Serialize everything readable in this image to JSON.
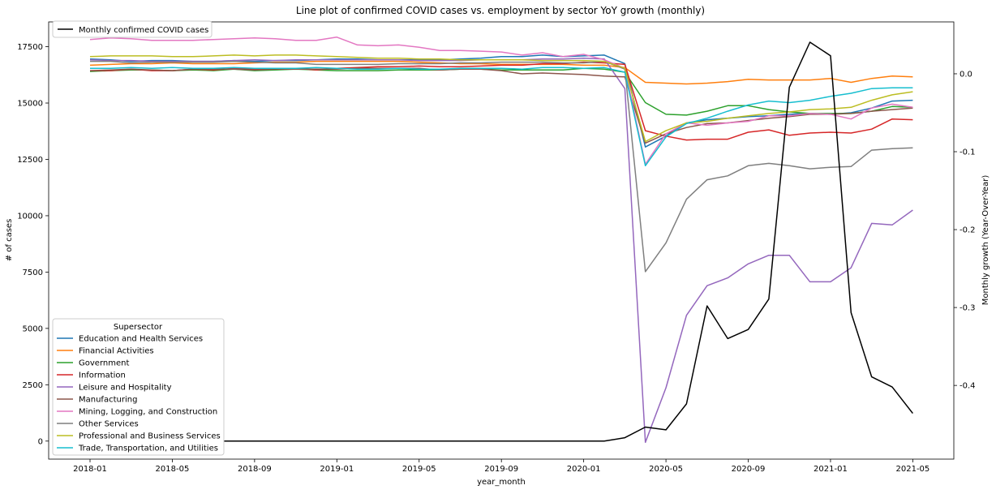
{
  "chart_data": {
    "type": "line",
    "title": "Line plot of confirmed COVID cases vs. employment by sector YoY growth (monthly)",
    "xlabel": "year_month",
    "ylabel_left": "# of cases",
    "ylabel_right": "Monthly growth (Year-Over-Year)",
    "x": [
      "2018-01",
      "2018-02",
      "2018-03",
      "2018-04",
      "2018-05",
      "2018-06",
      "2018-07",
      "2018-08",
      "2018-09",
      "2018-10",
      "2018-11",
      "2018-12",
      "2019-01",
      "2019-02",
      "2019-03",
      "2019-04",
      "2019-05",
      "2019-06",
      "2019-07",
      "2019-08",
      "2019-09",
      "2019-10",
      "2019-11",
      "2019-12",
      "2020-01",
      "2020-02",
      "2020-03",
      "2020-04",
      "2020-05",
      "2020-06",
      "2020-07",
      "2020-08",
      "2020-09",
      "2020-10",
      "2020-11",
      "2020-12",
      "2021-01",
      "2021-02",
      "2021-03",
      "2021-04",
      "2021-05"
    ],
    "x_ticks": [
      "2018-01",
      "2018-05",
      "2018-09",
      "2019-01",
      "2019-05",
      "2019-09",
      "2020-01",
      "2020-05",
      "2020-09",
      "2021-01",
      "2021-05"
    ],
    "ylim_left": [
      -800,
      18600
    ],
    "y_ticks_left": [
      0,
      2500,
      5000,
      7500,
      10000,
      12500,
      15000,
      17500
    ],
    "ylim_right": [
      -0.4946,
      0.0666
    ],
    "y_ticks_right": [
      0.0,
      -0.1,
      -0.2,
      -0.3,
      -0.4
    ],
    "grid": false,
    "covid_series": {
      "name": "Monthly confirmed COVID cases",
      "color": "#000000",
      "values": [
        0,
        0,
        0,
        0,
        0,
        0,
        0,
        0,
        0,
        0,
        0,
        0,
        0,
        0,
        0,
        0,
        0,
        0,
        0,
        0,
        0,
        0,
        0,
        0,
        0,
        0,
        150,
        620,
        500,
        1650,
        6000,
        4550,
        4950,
        6300,
        15700,
        17700,
        17100,
        5700,
        2850,
        2400,
        1230
      ]
    },
    "legend_top_placement": "top-left",
    "legend_bottom_placement": "lower-left",
    "legend_title": "Supersector",
    "series": [
      {
        "name": "Education and Health Services",
        "color": "#1f77b4",
        "values": [
          0.019,
          0.018,
          0.016,
          0.017,
          0.017,
          0.016,
          0.016,
          0.017,
          0.016,
          0.017,
          0.017,
          0.018,
          0.019,
          0.019,
          0.018,
          0.018,
          0.018,
          0.018,
          0.019,
          0.02,
          0.022,
          0.022,
          0.024,
          0.022,
          0.023,
          0.024,
          0.013,
          -0.094,
          -0.08,
          -0.063,
          -0.059,
          -0.057,
          -0.055,
          -0.054,
          -0.052,
          -0.051,
          -0.052,
          -0.05,
          -0.044,
          -0.035,
          -0.034
        ]
      },
      {
        "name": "Financial Activities",
        "color": "#ff7f0e",
        "values": [
          0.011,
          0.012,
          0.013,
          0.013,
          0.014,
          0.013,
          0.013,
          0.013,
          0.014,
          0.015,
          0.015,
          0.016,
          0.016,
          0.016,
          0.016,
          0.016,
          0.015,
          0.014,
          0.013,
          0.013,
          0.012,
          0.012,
          0.012,
          0.012,
          0.011,
          0.011,
          0.008,
          -0.011,
          -0.012,
          -0.013,
          -0.012,
          -0.01,
          -0.007,
          -0.008,
          -0.008,
          -0.008,
          -0.006,
          -0.011,
          -0.006,
          -0.003,
          -0.004
        ]
      },
      {
        "name": "Government",
        "color": "#2ca02c",
        "values": [
          0.003,
          0.004,
          0.005,
          0.005,
          0.004,
          0.005,
          0.004,
          0.006,
          0.004,
          0.005,
          0.006,
          0.005,
          0.004,
          0.004,
          0.004,
          0.005,
          0.005,
          0.005,
          0.006,
          0.006,
          0.005,
          0.005,
          0.005,
          0.005,
          0.007,
          0.006,
          0.002,
          -0.037,
          -0.052,
          -0.053,
          -0.048,
          -0.041,
          -0.041,
          -0.046,
          -0.049,
          -0.051,
          -0.051,
          -0.051,
          -0.048,
          -0.042,
          -0.043
        ]
      },
      {
        "name": "Information",
        "color": "#d62728",
        "values": [
          0.004,
          0.004,
          0.006,
          0.004,
          0.004,
          0.006,
          0.005,
          0.007,
          0.006,
          0.007,
          0.007,
          0.005,
          0.007,
          0.008,
          0.009,
          0.009,
          0.01,
          0.009,
          0.009,
          0.01,
          0.011,
          0.011,
          0.013,
          0.013,
          0.015,
          0.014,
          0.012,
          -0.073,
          -0.08,
          -0.085,
          -0.084,
          -0.084,
          -0.075,
          -0.072,
          -0.079,
          -0.076,
          -0.075,
          -0.076,
          -0.071,
          -0.058,
          -0.059
        ]
      },
      {
        "name": "Leisure and Hospitality",
        "color": "#9467bd",
        "values": [
          0.018,
          0.017,
          0.017,
          0.016,
          0.016,
          0.016,
          0.016,
          0.017,
          0.018,
          0.017,
          0.018,
          0.018,
          0.018,
          0.018,
          0.018,
          0.018,
          0.017,
          0.017,
          0.017,
          0.018,
          0.018,
          0.018,
          0.019,
          0.019,
          0.02,
          0.019,
          -0.019,
          -0.473,
          -0.403,
          -0.31,
          -0.272,
          -0.262,
          -0.244,
          -0.233,
          -0.233,
          -0.267,
          -0.267,
          -0.249,
          -0.192,
          -0.194,
          -0.175
        ]
      },
      {
        "name": "Manufacturing",
        "color": "#8c564b",
        "values": [
          0.004,
          0.005,
          0.006,
          0.005,
          0.004,
          0.006,
          0.006,
          0.006,
          0.005,
          0.006,
          0.006,
          0.006,
          0.006,
          0.007,
          0.007,
          0.007,
          0.007,
          0.005,
          0.006,
          0.006,
          0.004,
          0.0,
          0.001,
          0.0,
          -0.001,
          -0.003,
          -0.004,
          -0.089,
          -0.077,
          -0.069,
          -0.064,
          -0.063,
          -0.06,
          -0.057,
          -0.055,
          -0.052,
          -0.052,
          -0.051,
          -0.048,
          -0.046,
          -0.044
        ]
      },
      {
        "name": "Mining, Logging, and Construction",
        "color": "#e377c2",
        "values": [
          0.044,
          0.046,
          0.045,
          0.043,
          0.043,
          0.043,
          0.044,
          0.045,
          0.046,
          0.045,
          0.043,
          0.043,
          0.047,
          0.037,
          0.036,
          0.037,
          0.034,
          0.03,
          0.03,
          0.029,
          0.028,
          0.024,
          0.027,
          0.022,
          0.025,
          0.018,
          0.007,
          -0.116,
          -0.077,
          -0.063,
          -0.066,
          -0.063,
          -0.061,
          -0.054,
          -0.054,
          -0.051,
          -0.052,
          -0.058,
          -0.044,
          -0.039,
          -0.043
        ]
      },
      {
        "name": "Other Services",
        "color": "#7f7f7f",
        "values": [
          0.016,
          0.016,
          0.014,
          0.015,
          0.015,
          0.015,
          0.015,
          0.016,
          0.015,
          0.014,
          0.014,
          0.012,
          0.012,
          0.012,
          0.012,
          0.013,
          0.013,
          0.013,
          0.014,
          0.014,
          0.015,
          0.015,
          0.015,
          0.014,
          0.014,
          0.016,
          0.006,
          -0.254,
          -0.217,
          -0.161,
          -0.136,
          -0.131,
          -0.118,
          -0.115,
          -0.118,
          -0.122,
          -0.12,
          -0.119,
          -0.098,
          -0.096,
          -0.095
        ]
      },
      {
        "name": "Professional and Business Services",
        "color": "#bcbd22",
        "values": [
          0.022,
          0.023,
          0.023,
          0.023,
          0.022,
          0.022,
          0.023,
          0.024,
          0.023,
          0.024,
          0.024,
          0.023,
          0.022,
          0.021,
          0.02,
          0.02,
          0.019,
          0.019,
          0.018,
          0.018,
          0.018,
          0.018,
          0.017,
          0.017,
          0.017,
          0.016,
          0.007,
          -0.087,
          -0.073,
          -0.063,
          -0.061,
          -0.057,
          -0.054,
          -0.051,
          -0.049,
          -0.046,
          -0.045,
          -0.043,
          -0.034,
          -0.027,
          -0.023
        ]
      },
      {
        "name": "Trade, Transportation, and Utilities",
        "color": "#17becf",
        "values": [
          0.007,
          0.007,
          0.008,
          0.007,
          0.008,
          0.007,
          0.007,
          0.008,
          0.007,
          0.007,
          0.007,
          0.008,
          0.007,
          0.006,
          0.006,
          0.007,
          0.006,
          0.006,
          0.007,
          0.007,
          0.007,
          0.006,
          0.008,
          0.008,
          0.007,
          0.008,
          0.002,
          -0.118,
          -0.081,
          -0.064,
          -0.057,
          -0.048,
          -0.04,
          -0.035,
          -0.037,
          -0.034,
          -0.029,
          -0.025,
          -0.019,
          -0.018,
          -0.018
        ]
      }
    ]
  }
}
